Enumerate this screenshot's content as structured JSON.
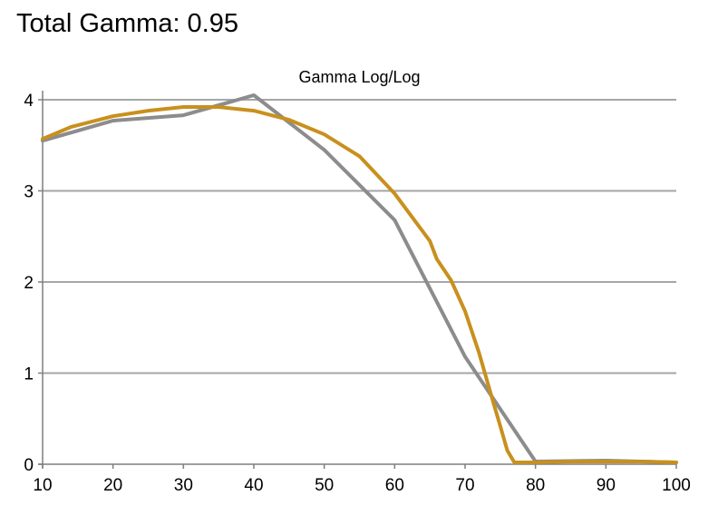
{
  "heading": "Total Gamma: 0.95",
  "chart_data": {
    "type": "line",
    "title": "Gamma Log/Log",
    "xlabel": "",
    "ylabel": "",
    "xlim": [
      10,
      100
    ],
    "ylim": [
      0,
      4
    ],
    "x_ticks": [
      "10",
      "20",
      "30",
      "40",
      "50",
      "60",
      "70",
      "80",
      "90",
      "100"
    ],
    "y_ticks": [
      "0",
      "1",
      "2",
      "3",
      "4"
    ],
    "grid": "horizontal",
    "legend": "none",
    "colors": {
      "gridline": "#a6a6a6",
      "axis": "#7f7f7f"
    },
    "series": [
      {
        "color": "#8c8c8c",
        "x": [
          10,
          20,
          30,
          40,
          50,
          60,
          70,
          80,
          90,
          100
        ],
        "y": [
          3.55,
          3.77,
          3.83,
          4.05,
          3.45,
          2.68,
          1.18,
          0.03,
          0.04,
          0.02
        ]
      },
      {
        "color": "#c8901e",
        "x": [
          10,
          14,
          20,
          25,
          30,
          35,
          40,
          45,
          50,
          55,
          60,
          65,
          66,
          68,
          70,
          72,
          74,
          75,
          76,
          77,
          80,
          85,
          90,
          95,
          100
        ],
        "y": [
          3.57,
          3.7,
          3.82,
          3.88,
          3.92,
          3.92,
          3.88,
          3.78,
          3.62,
          3.38,
          2.97,
          2.45,
          2.25,
          2.02,
          1.68,
          1.22,
          0.68,
          0.42,
          0.15,
          0.02,
          0.02,
          0.03,
          0.03,
          0.03,
          0.02
        ]
      }
    ]
  }
}
